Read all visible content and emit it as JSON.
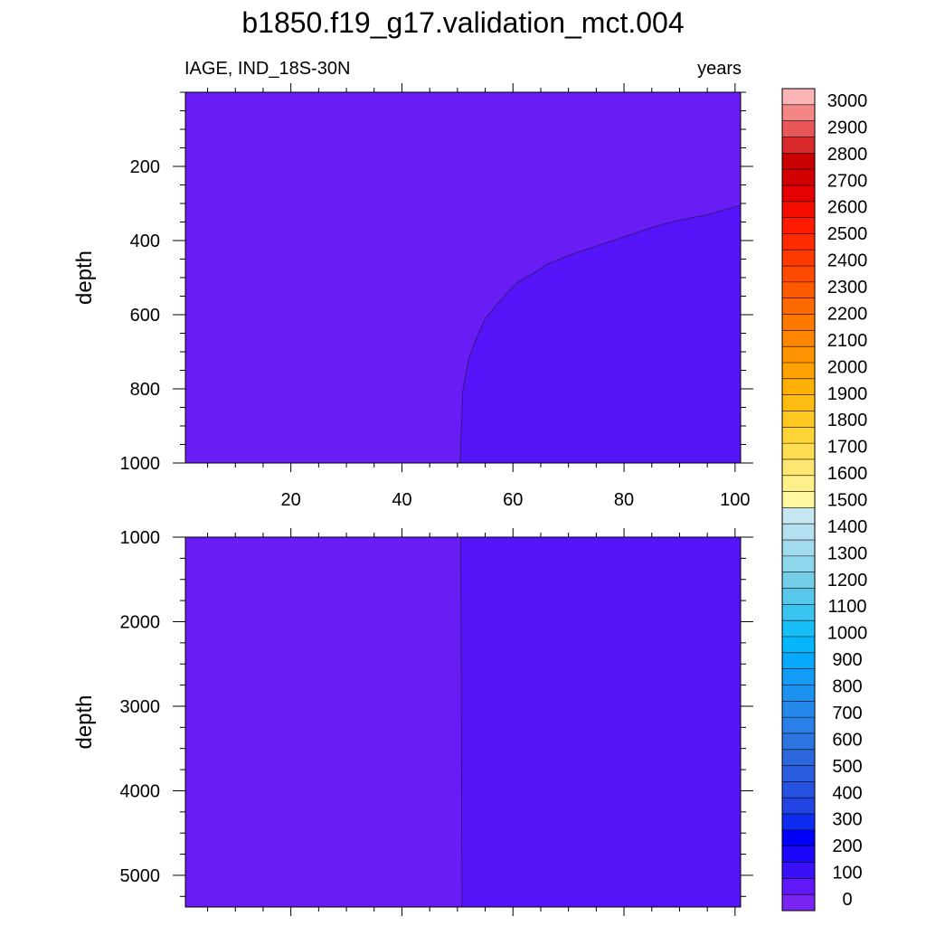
{
  "figure": {
    "title": "b1850.f19_g17.validation_mct.004",
    "left_label": "IAGE, IND_18S-30N",
    "right_label": "years"
  },
  "chart_data": [
    {
      "type": "heatmap",
      "panel": "upper",
      "xlim": [
        1,
        101
      ],
      "ylim": [
        1000,
        0
      ],
      "y_reversed": true,
      "xticks": [
        20,
        40,
        60,
        80,
        100
      ],
      "yticks": [
        200,
        400,
        600,
        800,
        1000
      ],
      "xlabel": "",
      "ylabel": "depth",
      "regions": [
        {
          "level_range": [
            0,
            50
          ],
          "color": "#6a1cf5"
        },
        {
          "level_range": [
            50,
            100
          ],
          "color": "#5514f7"
        }
      ],
      "contour_50": [
        [
          50.5,
          1000
        ],
        [
          50.7,
          900
        ],
        [
          51,
          800
        ],
        [
          52,
          720
        ],
        [
          53.5,
          660
        ],
        [
          55,
          610
        ],
        [
          57,
          575
        ],
        [
          59,
          540
        ],
        [
          61,
          510
        ],
        [
          63.5,
          490
        ],
        [
          66,
          465
        ],
        [
          70,
          440
        ],
        [
          74,
          420
        ],
        [
          78,
          400
        ],
        [
          82,
          380
        ],
        [
          86,
          360
        ],
        [
          90,
          345
        ],
        [
          95,
          330
        ],
        [
          101,
          305
        ]
      ]
    },
    {
      "type": "heatmap",
      "panel": "lower",
      "xlim": [
        1,
        101
      ],
      "ylim": [
        5375,
        1000
      ],
      "y_reversed": true,
      "yticks": [
        1000,
        2000,
        3000,
        4000,
        5000
      ],
      "xlabel": "",
      "ylabel": "depth",
      "regions": [
        {
          "level_range": [
            0,
            50
          ],
          "color": "#6a1cf5"
        },
        {
          "level_range": [
            50,
            100
          ],
          "color": "#5514f7"
        }
      ],
      "contour_50": [
        [
          50.6,
          1000
        ],
        [
          50.7,
          3000
        ],
        [
          50.8,
          5375
        ]
      ]
    }
  ],
  "colorbar": {
    "labels": [
      "0",
      "100",
      "200",
      "300",
      "400",
      "500",
      "600",
      "700",
      "800",
      "900",
      "1000",
      "1100",
      "1200",
      "1300",
      "1400",
      "1500",
      "1600",
      "1700",
      "1800",
      "1900",
      "2000",
      "2100",
      "2200",
      "2300",
      "2400",
      "2500",
      "2600",
      "2700",
      "2800",
      "2900",
      "3000"
    ],
    "colors": [
      "#7a24f2",
      "#5f18f6",
      "#3a10f8",
      "#1c06fa",
      "#0000f6",
      "#0e2cf0",
      "#2244e4",
      "#2652e0",
      "#2a5ede",
      "#2c68dc",
      "#2c74e0",
      "#2a80e6",
      "#2488ea",
      "#1c92f0",
      "#129cf6",
      "#08a8fa",
      "#06b6fc",
      "#18bef6",
      "#38c4ee",
      "#58c8ea",
      "#74cee8",
      "#8ed6ec",
      "#a2daee",
      "#b4e0f0",
      "#c6e6f2",
      "#fff8a0",
      "#fff08a",
      "#ffe670",
      "#ffde52",
      "#ffd436",
      "#ffc820",
      "#ffbc10",
      "#ffb004",
      "#ffa200",
      "#ff9400",
      "#ff8600",
      "#ff7800",
      "#ff6a00",
      "#ff5a00",
      "#ff4a00",
      "#ff3a00",
      "#ff2a00",
      "#ff1a00",
      "#f50c00",
      "#e40000",
      "#d20000",
      "#c80000",
      "#d82a2a",
      "#e85858",
      "#f48686",
      "#fcb4b4"
    ]
  }
}
